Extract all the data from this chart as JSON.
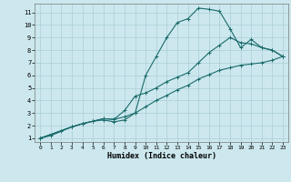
{
  "xlabel": "Humidex (Indice chaleur)",
  "background_color": "#cce8ee",
  "grid_color": "#aacdd6",
  "line_color": "#1a6b6b",
  "xlim": [
    -0.5,
    23.5
  ],
  "ylim": [
    0.7,
    11.7
  ],
  "xticks": [
    0,
    1,
    2,
    3,
    4,
    5,
    6,
    7,
    8,
    9,
    10,
    11,
    12,
    13,
    14,
    15,
    16,
    17,
    18,
    19,
    20,
    21,
    22,
    23
  ],
  "yticks": [
    1,
    2,
    3,
    4,
    5,
    6,
    7,
    8,
    9,
    10,
    11
  ],
  "curve1_x": [
    0,
    1,
    2,
    3,
    4,
    5,
    6,
    7,
    8,
    9,
    10,
    11,
    12,
    13,
    14,
    15,
    16,
    17,
    18,
    19,
    20,
    21,
    22,
    23
  ],
  "curve1_y": [
    1.0,
    1.2,
    1.55,
    1.9,
    2.15,
    2.35,
    2.45,
    2.3,
    2.45,
    3.0,
    6.0,
    7.5,
    9.0,
    10.2,
    10.5,
    11.35,
    11.25,
    11.1,
    9.7,
    8.2,
    8.85,
    8.2,
    8.0,
    7.5
  ],
  "curve2_x": [
    0,
    3,
    4,
    5,
    6,
    7,
    8,
    9,
    10,
    11,
    12,
    13,
    14,
    15,
    16,
    17,
    18,
    19,
    20,
    21,
    22,
    23
  ],
  "curve2_y": [
    1.0,
    1.9,
    2.15,
    2.35,
    2.55,
    2.5,
    3.2,
    4.35,
    4.6,
    5.0,
    5.5,
    5.85,
    6.2,
    7.0,
    7.8,
    8.4,
    9.0,
    8.6,
    8.5,
    8.2,
    8.0,
    7.5
  ],
  "curve3_x": [
    0,
    3,
    4,
    5,
    6,
    7,
    8,
    9,
    10,
    11,
    12,
    13,
    14,
    15,
    16,
    17,
    18,
    19,
    20,
    21,
    22,
    23
  ],
  "curve3_y": [
    1.0,
    1.9,
    2.15,
    2.35,
    2.55,
    2.5,
    2.7,
    3.0,
    3.5,
    4.0,
    4.4,
    4.85,
    5.2,
    5.7,
    6.05,
    6.4,
    6.6,
    6.8,
    6.9,
    7.0,
    7.2,
    7.5
  ],
  "marker_size": 2.5,
  "line_width": 0.8
}
